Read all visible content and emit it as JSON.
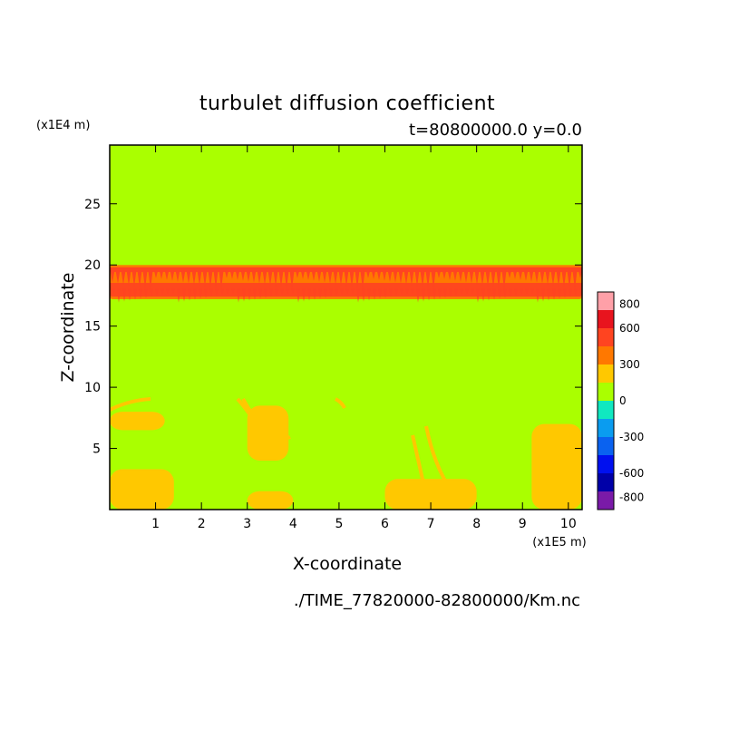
{
  "chart_data": {
    "type": "heatmap",
    "title": "turbulet diffusion coefficient",
    "subtitle": "t=80800000.0 y=0.0",
    "xlabel": "X-coordinate",
    "ylabel": "Z-coordinate",
    "x_unit": "(x1E5 m)",
    "y_unit": "(x1E4 m)",
    "xlim": [
      0,
      10.3
    ],
    "ylim": [
      0,
      29.8
    ],
    "x_ticks": [
      "1",
      "2",
      "3",
      "4",
      "5",
      "6",
      "7",
      "8",
      "9",
      "10"
    ],
    "y_ticks": [
      "5",
      "10",
      "15",
      "20",
      "25"
    ],
    "background_value": 0,
    "regions": [
      {
        "level": "300-450",
        "x_range": [
          0.0,
          10.3
        ],
        "z_range": [
          17.2,
          20.0
        ],
        "description": "band"
      },
      {
        "level": "450-600",
        "x_range": [
          0.0,
          10.3
        ],
        "z_range": [
          17.4,
          19.8
        ],
        "description": "band"
      },
      {
        "level": "150-300",
        "x_range": [
          0.0,
          1.4
        ],
        "z_range": [
          0.0,
          3.3
        ]
      },
      {
        "level": "150-300",
        "x_range": [
          3.0,
          4.0
        ],
        "z_range": [
          0.0,
          1.5
        ]
      },
      {
        "level": "150-300",
        "x_range": [
          6.0,
          8.0
        ],
        "z_range": [
          0.0,
          2.5
        ]
      },
      {
        "level": "150-300",
        "x_range": [
          9.2,
          10.3
        ],
        "z_range": [
          0.0,
          7.0
        ]
      },
      {
        "level": "150-300",
        "x_range": [
          0.0,
          1.2
        ],
        "z_range": [
          6.5,
          8.0
        ]
      },
      {
        "level": "150-300",
        "x_range": [
          3.0,
          3.9
        ],
        "z_range": [
          4.0,
          8.5
        ]
      }
    ],
    "colorbar": {
      "tick_labels": [
        "800",
        "600",
        "300",
        "0",
        "-300",
        "-600",
        "-800"
      ],
      "tick_values": [
        800,
        600,
        300,
        0,
        -300,
        -600,
        -800
      ],
      "levels": [
        {
          "from": -900,
          "to": -750,
          "color": "#7a1aa8"
        },
        {
          "from": -750,
          "to": -600,
          "color": "#0000a8"
        },
        {
          "from": -600,
          "to": -450,
          "color": "#0010ef"
        },
        {
          "from": -450,
          "to": -300,
          "color": "#0a62f0"
        },
        {
          "from": -300,
          "to": -150,
          "color": "#0a9cf0"
        },
        {
          "from": -150,
          "to": 0,
          "color": "#10e8c0"
        },
        {
          "from": 0,
          "to": 150,
          "color": "#aaff00"
        },
        {
          "from": 150,
          "to": 300,
          "color": "#ffc800"
        },
        {
          "from": 300,
          "to": 450,
          "color": "#ff7800"
        },
        {
          "from": 450,
          "to": 600,
          "color": "#ff4420"
        },
        {
          "from": 600,
          "to": 750,
          "color": "#e8141e"
        },
        {
          "from": 750,
          "to": 900,
          "color": "#ffa0a8"
        }
      ]
    },
    "source": "./TIME_77820000-82800000/Km.nc"
  }
}
